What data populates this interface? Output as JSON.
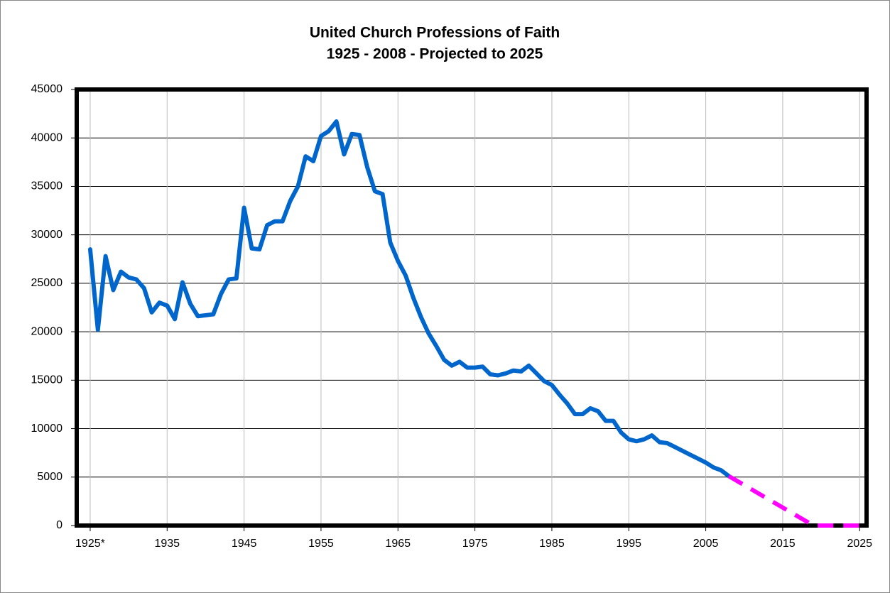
{
  "chart_data": {
    "type": "line",
    "title": "United Church Professions of Faith",
    "subtitle": "1925 - 2008 - Projected to 2025",
    "xlim": [
      1923.25,
      2025.9
    ],
    "xticks": [
      {
        "value": 1925,
        "label": "1925*"
      },
      1935,
      1945,
      1955,
      1965,
      1975,
      1985,
      1995,
      2005,
      2015,
      2025
    ],
    "ylim": [
      0,
      45000
    ],
    "yticks": [
      0,
      5000,
      10000,
      15000,
      20000,
      25000,
      30000,
      35000,
      40000,
      45000
    ],
    "grid": true,
    "series": [
      {
        "color": "#0066cc",
        "dashed": false,
        "x": [
          1925,
          1926,
          1927,
          1928,
          1929,
          1930,
          1931,
          1932,
          1933,
          1934,
          1935,
          1936,
          1937,
          1938,
          1939,
          1940,
          1941,
          1942,
          1943,
          1944,
          1945,
          1946,
          1947,
          1948,
          1949,
          1950,
          1951,
          1952,
          1953,
          1954,
          1955,
          1956,
          1957,
          1958,
          1959,
          1960,
          1961,
          1962,
          1963,
          1964,
          1965,
          1966,
          1967,
          1968,
          1969,
          1970,
          1971,
          1972,
          1973,
          1974,
          1975,
          1976,
          1977,
          1978,
          1979,
          1980,
          1981,
          1982,
          1983,
          1984,
          1985,
          1986,
          1987,
          1988,
          1989,
          1990,
          1991,
          1992,
          1993,
          1994,
          1995,
          1996,
          1997,
          1998,
          1999,
          2000,
          2001,
          2002,
          2003,
          2004,
          2005,
          2006,
          2007,
          2008
        ],
        "values": [
          28500,
          20200,
          27800,
          24300,
          26200,
          25600,
          25400,
          24500,
          22000,
          23000,
          22700,
          21300,
          25100,
          22900,
          21600,
          21700,
          21800,
          23900,
          25400,
          25500,
          32800,
          28600,
          28500,
          31000,
          31400,
          31400,
          33500,
          35000,
          38100,
          37600,
          40200,
          40700,
          41700,
          38300,
          40400,
          40300,
          37000,
          34500,
          34200,
          29200,
          27300,
          25800,
          23500,
          21500,
          19800,
          18500,
          17100,
          16500,
          16900,
          16300,
          16300,
          16400,
          15600,
          15500,
          15700,
          16000,
          15900,
          16500,
          15700,
          14900,
          14500,
          13500,
          12600,
          11500,
          11500,
          12100,
          11800,
          10800,
          10800,
          9600,
          8900,
          8700,
          8900,
          9300,
          8600,
          8500,
          8100,
          7700,
          7300,
          6900,
          6500,
          6000,
          5700,
          5100
        ]
      },
      {
        "color": "#ff00ff",
        "dashed": true,
        "x": [
          2008,
          2019,
          2025
        ],
        "values": [
          5100,
          0,
          0
        ]
      }
    ]
  }
}
